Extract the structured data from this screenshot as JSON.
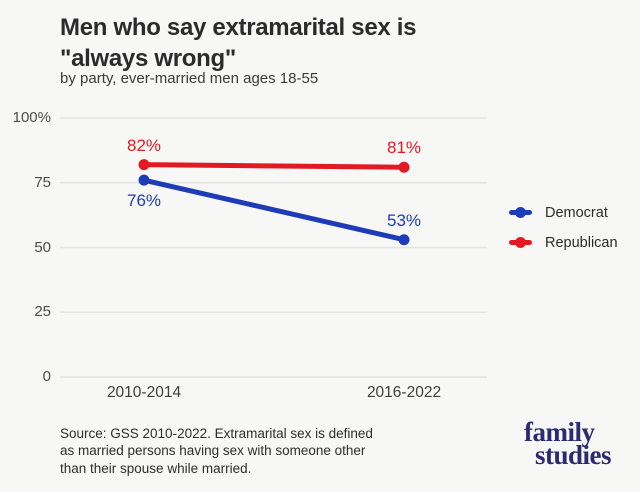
{
  "title": {
    "line1": "Men who say extramarital sex is",
    "line2": "\"always wrong\""
  },
  "subtitle": "by party, ever-married men ages 18-55",
  "chart_data": {
    "type": "line",
    "categories": [
      "2010-2014",
      "2016-2022"
    ],
    "series": [
      {
        "name": "Democrat",
        "color": "#1e3bb8",
        "values": [
          76,
          53
        ],
        "point_labels": [
          "76%",
          "53%"
        ],
        "label_positions": [
          "below",
          "above"
        ]
      },
      {
        "name": "Republican",
        "color": "#e11a23",
        "values": [
          82,
          81
        ],
        "point_labels": [
          "82%",
          "81%"
        ],
        "label_positions": [
          "above",
          "above"
        ]
      }
    ],
    "title": "Men who say extramarital sex is \"always wrong\"",
    "xlabel": "",
    "ylabel": "",
    "ylim": [
      0,
      100
    ],
    "yticks": [
      0,
      25,
      50,
      75,
      100
    ],
    "ytick_labels": [
      "0",
      "25",
      "50",
      "75",
      "100%"
    ],
    "grid": true,
    "legend_position": "right"
  },
  "source": {
    "line1": "Source: GSS 2010-2022. Extramarital sex is defined",
    "line2": "as married persons having sex with someone other",
    "line3": "than their spouse while married."
  },
  "logo": {
    "line1": "family",
    "line2": "studies"
  },
  "colors": {
    "background": "#f7f7f5",
    "democrat": "#1e3bb8",
    "republican": "#e11a23",
    "grid": "#e3e3e7",
    "logo": "#2b2b72"
  }
}
